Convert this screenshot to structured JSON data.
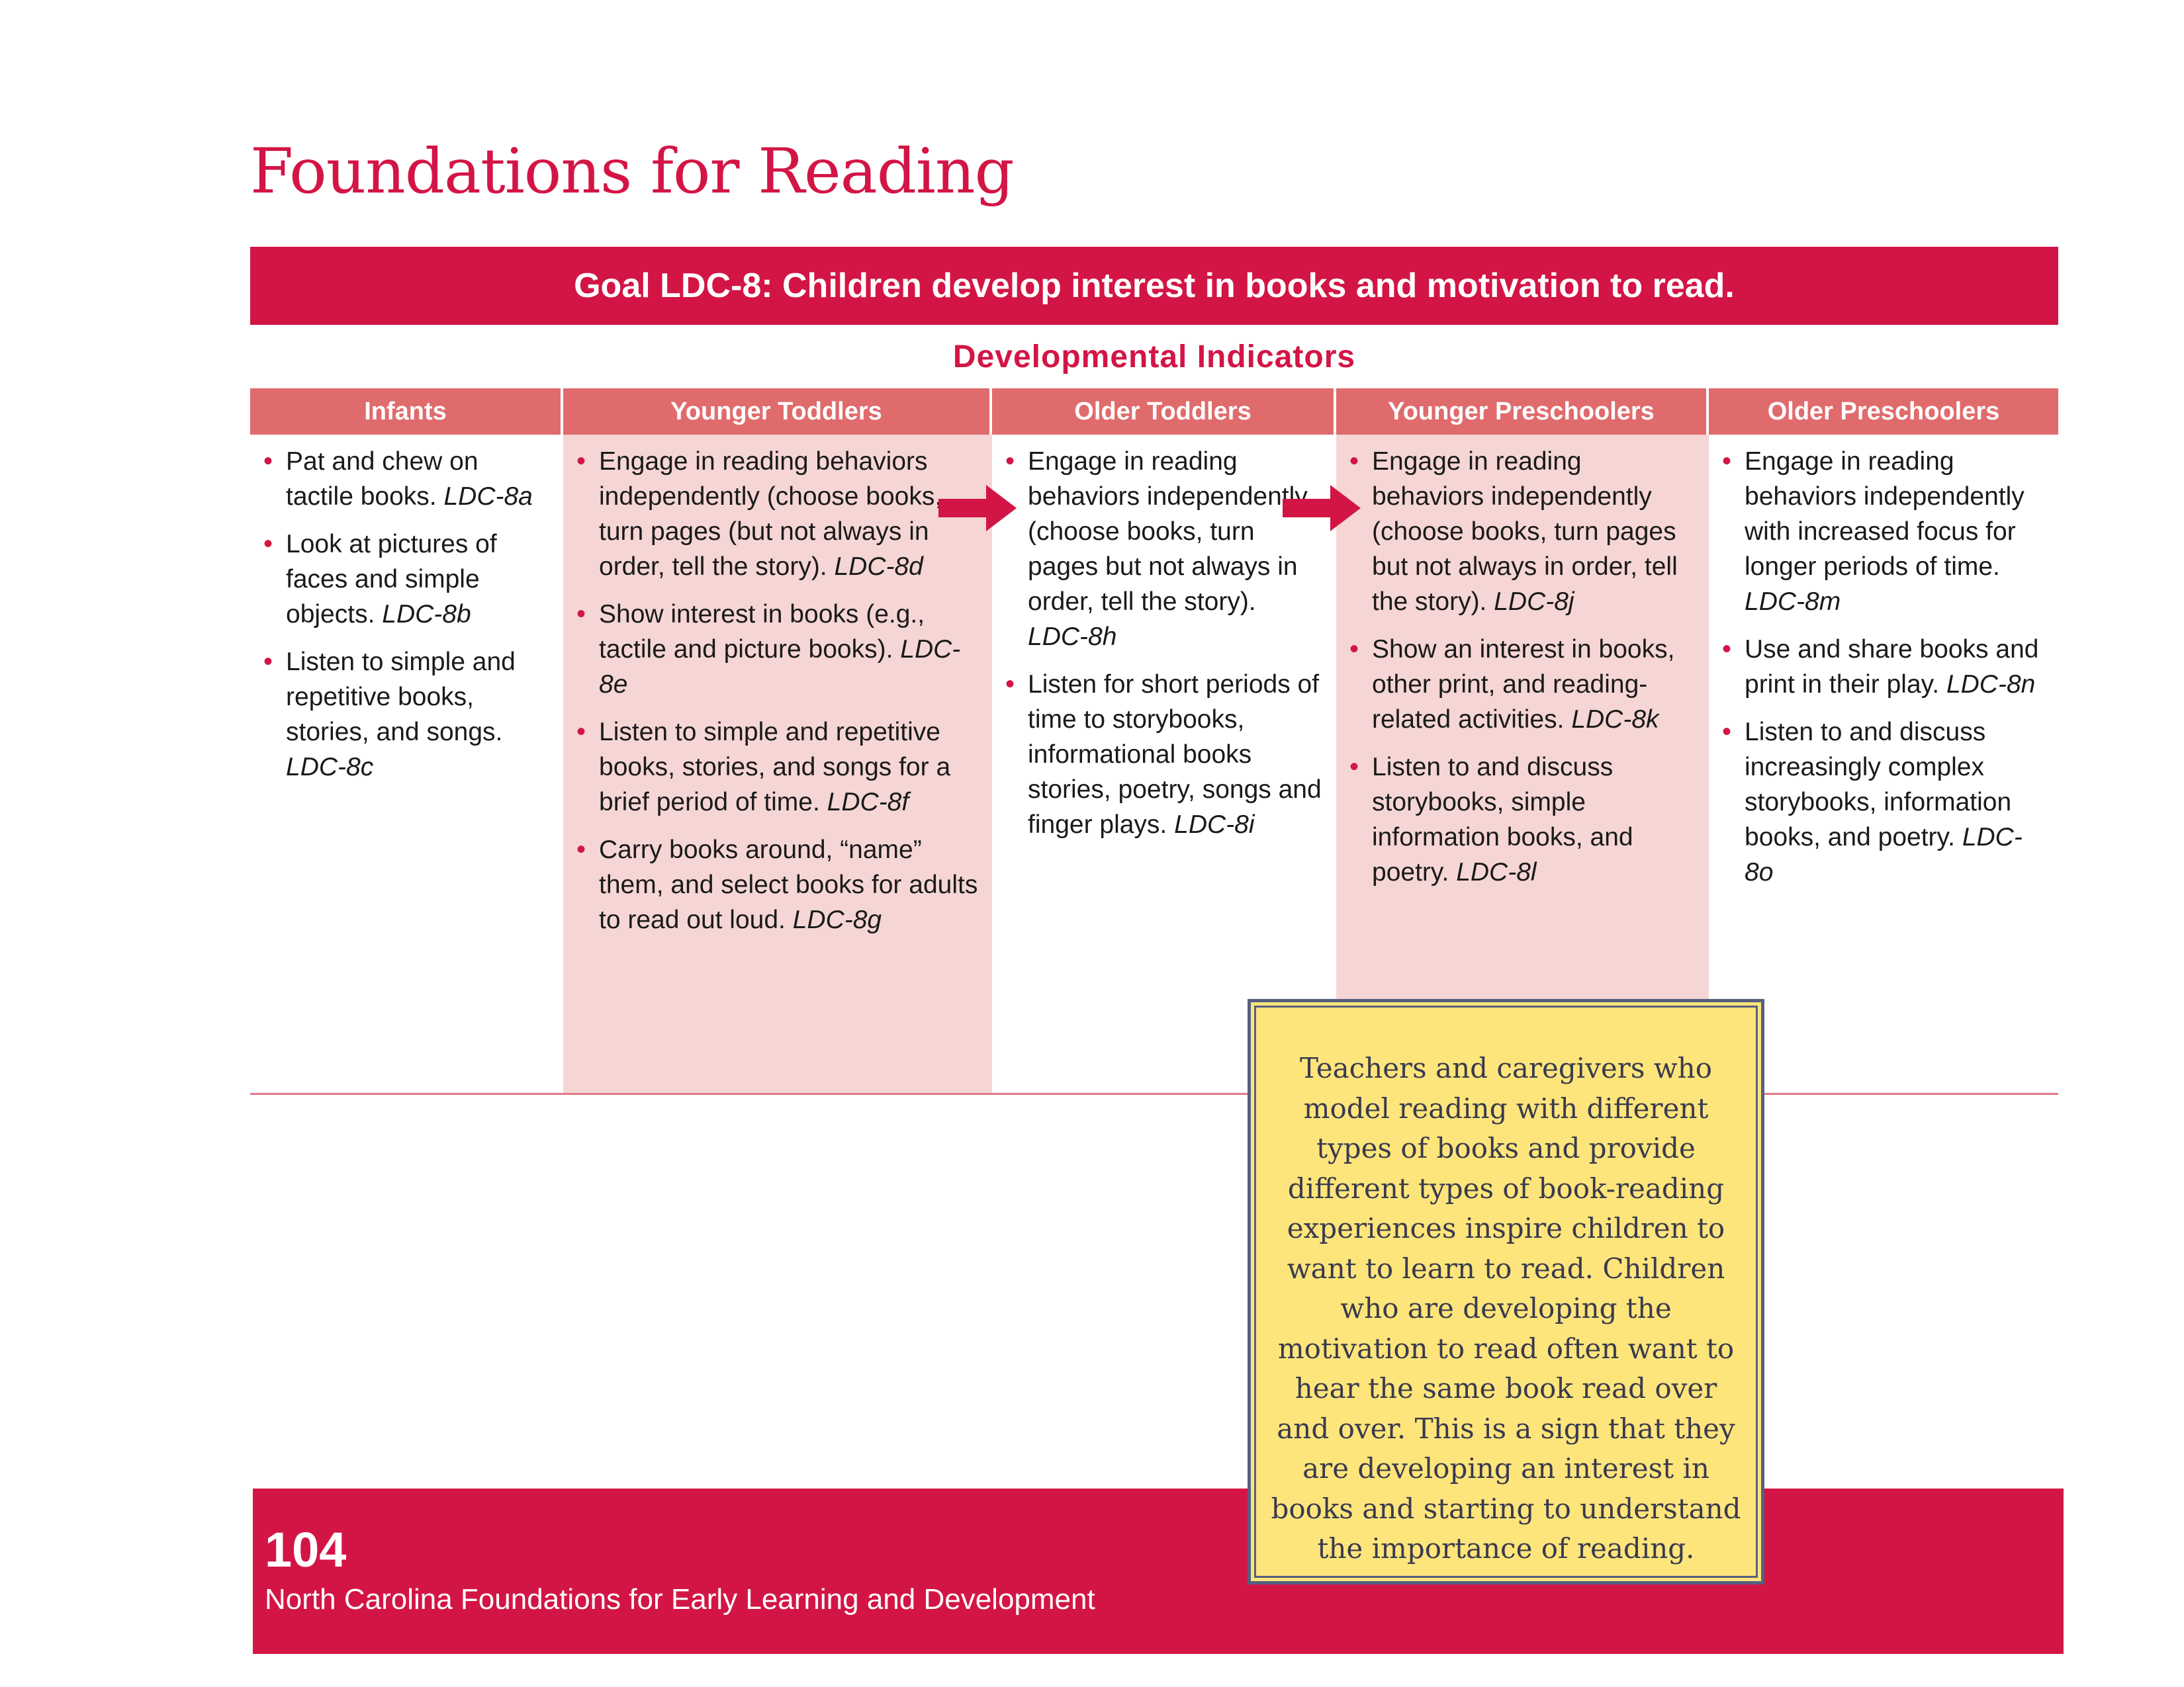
{
  "page": {
    "title": "Foundations for Reading"
  },
  "goal": {
    "text": "Goal LDC-8: Children develop interest in books and motivation to read."
  },
  "section": {
    "heading": "Developmental Indicators"
  },
  "columns": [
    {
      "header": "Infants",
      "items": [
        {
          "text": "Pat and chew on tactile books.",
          "code": "LDC-8a"
        },
        {
          "text": "Look at pictures of faces and simple objects.",
          "code": "LDC-8b"
        },
        {
          "text": "Listen to simple and repetitive books, stories, and songs.",
          "code": "LDC-8c"
        }
      ]
    },
    {
      "header": "Younger Toddlers",
      "items": [
        {
          "text": "Engage in reading behaviors independently (choose books, turn pages (but not always in order, tell the story).",
          "code": "LDC-8d"
        },
        {
          "text": "Show interest in books (e.g., tactile and picture books).",
          "code": "LDC-8e"
        },
        {
          "text": "Listen to simple and repetitive books, stories, and songs for a brief period of time.",
          "code": "LDC-8f"
        },
        {
          "text": "Carry books around, “name” them, and select books for adults to read out loud.",
          "code": "LDC-8g"
        }
      ]
    },
    {
      "header": "Older Toddlers",
      "items": [
        {
          "text": "Engage in reading behaviors independently (choose books, turn pages but not always in order, tell the story).",
          "code": "LDC-8h"
        },
        {
          "text": "Listen for short periods of time to storybooks, informational books stories, poetry, songs and finger plays.",
          "code": "LDC-8i"
        }
      ]
    },
    {
      "header": "Younger Preschoolers",
      "items": [
        {
          "text": "Engage in reading behaviors independently (choose books, turn pages but not always in order, tell the story).",
          "code": "LDC-8j"
        },
        {
          "text": "Show an interest in books, other print, and reading-related activities.",
          "code": "LDC-8k"
        },
        {
          "text": "Listen to and discuss storybooks, simple information books, and poetry.",
          "code": "LDC-8l"
        }
      ]
    },
    {
      "header": "Older Preschoolers",
      "items": [
        {
          "text": "Engage in reading behaviors independently with increased focus for longer periods of time.",
          "code": "LDC-8m"
        },
        {
          "text": "Use and share books and print in their play.",
          "code": "LDC-8n"
        },
        {
          "text": "Listen to and discuss increasingly complex storybooks, information books, and poetry.",
          "code": "LDC-8o"
        }
      ]
    }
  ],
  "callout": {
    "text": "Teachers and caregivers who model reading with different types of books and provide different types of book-reading experiences inspire children to want to learn to read. Children who are developing the motivation to read often want to hear the same book read over and over. This is a sign that they are developing an interest in books and starting to understand the importance of reading."
  },
  "footer": {
    "page_number": "104",
    "publication": "North Carolina Foundations for Early Learning and Development"
  },
  "colors": {
    "accent": "#d31545",
    "header_fill": "#e06b6d",
    "shade": "#f5d6d4",
    "callout": "#fde57b"
  }
}
